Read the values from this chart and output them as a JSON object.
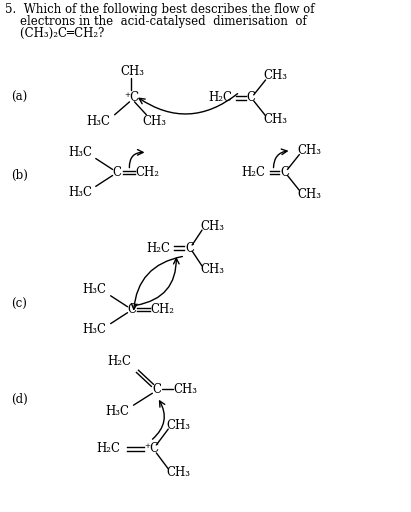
{
  "bg_color": "#ffffff",
  "text_color": "#000000",
  "fs": 8.5,
  "cfs": 8.5,
  "title_lines": [
    "5.  Which of the following best describes the flow of",
    "    electrons in the  acid-catalysed  dimerisation  of",
    "    (CH₃)₂C═CH₂?"
  ]
}
